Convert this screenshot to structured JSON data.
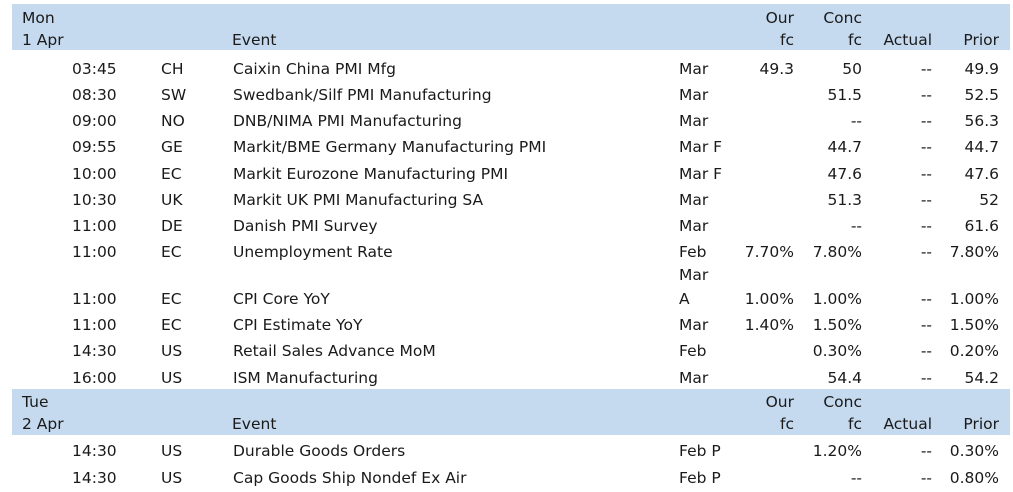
{
  "days": [
    {
      "header": {
        "day_line1": "Mon",
        "day_line2": "1 Apr",
        "event": "Event",
        "our_fc_line1": "Our",
        "our_fc_line2": "fc",
        "conc_fc_line1": "Conc",
        "conc_fc_line2": "fc",
        "actual": "Actual",
        "prior": "Prior"
      },
      "rows": [
        {
          "time": "03:45",
          "country": "CH",
          "event": "Caixin China PMI Mfg",
          "period": "Mar",
          "our_fc": "49.3",
          "conc_fc": "50",
          "actual": "--",
          "prior": "49.9"
        },
        {
          "time": "08:30",
          "country": "SW",
          "event": "Swedbank/Silf PMI Manufacturing",
          "period": "Mar",
          "our_fc": "",
          "conc_fc": "51.5",
          "actual": "--",
          "prior": "52.5"
        },
        {
          "time": "09:00",
          "country": "NO",
          "event": "DNB/NIMA PMI Manufacturing",
          "period": "Mar",
          "our_fc": "",
          "conc_fc": "--",
          "actual": "--",
          "prior": "56.3"
        },
        {
          "time": "09:55",
          "country": "GE",
          "event": "Markit/BME Germany Manufacturing PMI",
          "period": "Mar F",
          "our_fc": "",
          "conc_fc": "44.7",
          "actual": "--",
          "prior": "44.7"
        },
        {
          "time": "10:00",
          "country": "EC",
          "event": "Markit Eurozone Manufacturing PMI",
          "period": "Mar F",
          "our_fc": "",
          "conc_fc": "47.6",
          "actual": "--",
          "prior": "47.6"
        },
        {
          "time": "10:30",
          "country": "UK",
          "event": "Markit UK PMI Manufacturing SA",
          "period": "Mar",
          "our_fc": "",
          "conc_fc": "51.3",
          "actual": "--",
          "prior": "52"
        },
        {
          "time": "11:00",
          "country": "DE",
          "event": "Danish PMI Survey",
          "period": "Mar",
          "our_fc": "",
          "conc_fc": "--",
          "actual": "--",
          "prior": "61.6"
        },
        {
          "time": "11:00",
          "country": "EC",
          "event": "Unemployment Rate",
          "period": "Feb",
          "our_fc": "7.70%",
          "conc_fc": "7.80%",
          "actual": "--",
          "prior": "7.80%"
        },
        {
          "time": "11:00",
          "country": "EC",
          "event": "CPI Core YoY",
          "period_line1": "Mar",
          "period": "A",
          "our_fc": "1.00%",
          "conc_fc": "1.00%",
          "actual": "--",
          "prior": "1.00%"
        },
        {
          "time": "11:00",
          "country": "EC",
          "event": "CPI Estimate YoY",
          "period": "Mar",
          "our_fc": "1.40%",
          "conc_fc": "1.50%",
          "actual": "--",
          "prior": "1.50%"
        },
        {
          "time": "14:30",
          "country": "US",
          "event": "Retail Sales Advance MoM",
          "period": "Feb",
          "our_fc": "",
          "conc_fc": "0.30%",
          "actual": "--",
          "prior": "0.20%"
        },
        {
          "time": "16:00",
          "country": "US",
          "event": "ISM Manufacturing",
          "period": "Mar",
          "our_fc": "",
          "conc_fc": "54.4",
          "actual": "--",
          "prior": "54.2"
        }
      ]
    },
    {
      "header": {
        "day_line1": "Tue",
        "day_line2": "2 Apr",
        "event": "Event",
        "our_fc_line1": "Our",
        "our_fc_line2": "fc",
        "conc_fc_line1": "Conc",
        "conc_fc_line2": "fc",
        "actual": "Actual",
        "prior": "Prior"
      },
      "rows": [
        {
          "time": "14:30",
          "country": "US",
          "event": "Durable Goods Orders",
          "period": "Feb P",
          "our_fc": "",
          "conc_fc": "1.20%",
          "actual": "--",
          "prior": "0.30%"
        },
        {
          "time": "14:30",
          "country": "US",
          "event": "Cap Goods Ship Nondef Ex Air",
          "period": "Feb P",
          "our_fc": "",
          "conc_fc": "--",
          "actual": "--",
          "prior": "0.80%"
        }
      ]
    }
  ]
}
